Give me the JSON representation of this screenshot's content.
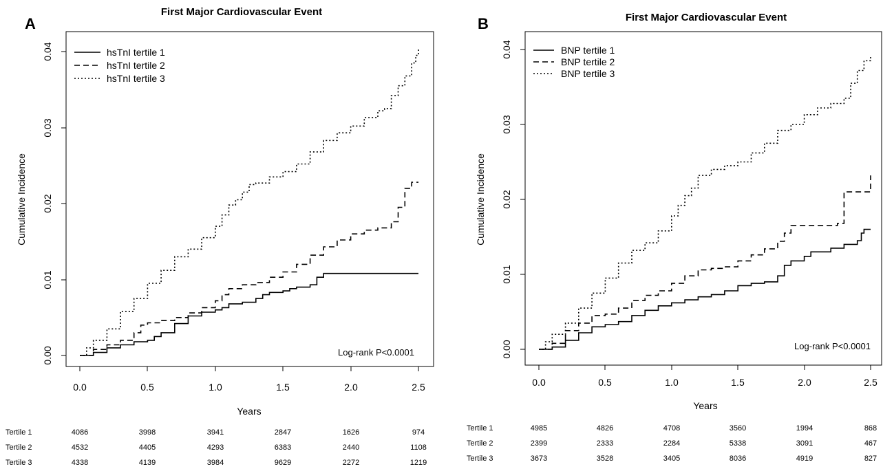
{
  "chart_data": [
    {
      "type": "line",
      "panel_letter": "A",
      "title": "First Major Cardiovascular Event",
      "xlabel": "Years",
      "ylabel": "Cumulative Incidence",
      "xlim": [
        0,
        2.5
      ],
      "ylim": [
        0,
        0.04
      ],
      "x_ticks": [
        "0.0",
        "0.5",
        "1.0",
        "1.5",
        "2.0",
        "2.5"
      ],
      "y_ticks": [
        "0.00",
        "0.01",
        "0.02",
        "0.03",
        "0.04"
      ],
      "legend_position": "top-left",
      "annotation": "Log-rank P<0.0001",
      "series": [
        {
          "name": "hsTnI tertile 1",
          "dash": "solid",
          "points": [
            [
              0,
              0
            ],
            [
              0.1,
              0.0004
            ],
            [
              0.2,
              0.001
            ],
            [
              0.3,
              0.0014
            ],
            [
              0.4,
              0.0018
            ],
            [
              0.5,
              0.002
            ],
            [
              0.55,
              0.0025
            ],
            [
              0.6,
              0.003
            ],
            [
              0.7,
              0.0042
            ],
            [
              0.8,
              0.0052
            ],
            [
              0.9,
              0.0057
            ],
            [
              1.0,
              0.006
            ],
            [
              1.05,
              0.0063
            ],
            [
              1.1,
              0.0068
            ],
            [
              1.2,
              0.007
            ],
            [
              1.3,
              0.0075
            ],
            [
              1.35,
              0.008
            ],
            [
              1.4,
              0.0083
            ],
            [
              1.5,
              0.0085
            ],
            [
              1.55,
              0.0088
            ],
            [
              1.6,
              0.009
            ],
            [
              1.7,
              0.0093
            ],
            [
              1.75,
              0.0103
            ],
            [
              1.8,
              0.0108
            ],
            [
              2.0,
              0.0108
            ],
            [
              2.5,
              0.0108
            ]
          ]
        },
        {
          "name": "hsTnI tertile 2",
          "dash": "dashed",
          "points": [
            [
              0,
              0
            ],
            [
              0.1,
              0.0008
            ],
            [
              0.2,
              0.0014
            ],
            [
              0.3,
              0.002
            ],
            [
              0.4,
              0.003
            ],
            [
              0.45,
              0.004
            ],
            [
              0.5,
              0.0043
            ],
            [
              0.6,
              0.0046
            ],
            [
              0.7,
              0.005
            ],
            [
              0.8,
              0.0056
            ],
            [
              0.9,
              0.0063
            ],
            [
              1.0,
              0.0072
            ],
            [
              1.05,
              0.008
            ],
            [
              1.1,
              0.0088
            ],
            [
              1.2,
              0.0093
            ],
            [
              1.3,
              0.0096
            ],
            [
              1.4,
              0.0103
            ],
            [
              1.5,
              0.011
            ],
            [
              1.6,
              0.012
            ],
            [
              1.7,
              0.0132
            ],
            [
              1.8,
              0.0143
            ],
            [
              1.9,
              0.0152
            ],
            [
              2.0,
              0.016
            ],
            [
              2.1,
              0.0165
            ],
            [
              2.2,
              0.0168
            ],
            [
              2.3,
              0.0176
            ],
            [
              2.35,
              0.0195
            ],
            [
              2.4,
              0.022
            ],
            [
              2.45,
              0.0228
            ],
            [
              2.5,
              0.0228
            ]
          ]
        },
        {
          "name": "hsTnI tertile 3",
          "dash": "dotted",
          "points": [
            [
              0,
              0
            ],
            [
              0.05,
              0.001
            ],
            [
              0.1,
              0.002
            ],
            [
              0.2,
              0.0035
            ],
            [
              0.3,
              0.0058
            ],
            [
              0.4,
              0.0075
            ],
            [
              0.5,
              0.0095
            ],
            [
              0.6,
              0.0112
            ],
            [
              0.7,
              0.013
            ],
            [
              0.8,
              0.014
            ],
            [
              0.9,
              0.0155
            ],
            [
              1.0,
              0.017
            ],
            [
              1.05,
              0.0185
            ],
            [
              1.1,
              0.0198
            ],
            [
              1.15,
              0.0205
            ],
            [
              1.2,
              0.0215
            ],
            [
              1.25,
              0.0225
            ],
            [
              1.3,
              0.0227
            ],
            [
              1.4,
              0.0235
            ],
            [
              1.5,
              0.0242
            ],
            [
              1.6,
              0.0252
            ],
            [
              1.7,
              0.0268
            ],
            [
              1.8,
              0.0283
            ],
            [
              1.9,
              0.0293
            ],
            [
              2.0,
              0.0302
            ],
            [
              2.1,
              0.0313
            ],
            [
              2.2,
              0.0322
            ],
            [
              2.25,
              0.0325
            ],
            [
              2.3,
              0.0342
            ],
            [
              2.35,
              0.0355
            ],
            [
              2.4,
              0.0368
            ],
            [
              2.45,
              0.0385
            ],
            [
              2.48,
              0.0395
            ],
            [
              2.5,
              0.0405
            ]
          ]
        }
      ],
      "risk_table": {
        "rows": [
          {
            "label": "Tertile 1",
            "values": [
              "4086",
              "3998",
              "3941",
              "2847",
              "1626",
              "974"
            ]
          },
          {
            "label": "Tertile 2",
            "values": [
              "4532",
              "4405",
              "4293",
              "6383",
              "2440",
              "1108"
            ]
          },
          {
            "label": "Tertile 3",
            "values": [
              "4338",
              "4139",
              "3984",
              "9629",
              "2272",
              "1219"
            ]
          }
        ]
      }
    },
    {
      "type": "line",
      "panel_letter": "B",
      "title": "First Major Cardiovascular Event",
      "xlabel": "Years",
      "ylabel": "Cumulative Incidence",
      "xlim": [
        0,
        2.5
      ],
      "ylim": [
        0,
        0.04
      ],
      "x_ticks": [
        "0.0",
        "0.5",
        "1.0",
        "1.5",
        "2.0",
        "2.5"
      ],
      "y_ticks": [
        "0.00",
        "0.01",
        "0.02",
        "0.03",
        "0.04"
      ],
      "legend_position": "top-left",
      "annotation": "Log-rank P<0.0001",
      "series": [
        {
          "name": "BNP tertile 1",
          "dash": "solid",
          "points": [
            [
              0,
              0
            ],
            [
              0.1,
              0.0003
            ],
            [
              0.2,
              0.0012
            ],
            [
              0.3,
              0.0022
            ],
            [
              0.4,
              0.003
            ],
            [
              0.5,
              0.0033
            ],
            [
              0.6,
              0.0037
            ],
            [
              0.7,
              0.0045
            ],
            [
              0.8,
              0.0052
            ],
            [
              0.9,
              0.0058
            ],
            [
              1.0,
              0.0062
            ],
            [
              1.1,
              0.0066
            ],
            [
              1.2,
              0.007
            ],
            [
              1.3,
              0.0073
            ],
            [
              1.4,
              0.0078
            ],
            [
              1.5,
              0.0085
            ],
            [
              1.6,
              0.0088
            ],
            [
              1.7,
              0.009
            ],
            [
              1.8,
              0.0098
            ],
            [
              1.85,
              0.0112
            ],
            [
              1.9,
              0.0118
            ],
            [
              2.0,
              0.0124
            ],
            [
              2.05,
              0.013
            ],
            [
              2.2,
              0.0135
            ],
            [
              2.3,
              0.014
            ],
            [
              2.4,
              0.0145
            ],
            [
              2.43,
              0.0155
            ],
            [
              2.45,
              0.016
            ],
            [
              2.5,
              0.016
            ]
          ]
        },
        {
          "name": "BNP tertile 2",
          "dash": "dashed",
          "points": [
            [
              0,
              0
            ],
            [
              0.1,
              0.0008
            ],
            [
              0.2,
              0.0025
            ],
            [
              0.3,
              0.0035
            ],
            [
              0.4,
              0.0045
            ],
            [
              0.5,
              0.0047
            ],
            [
              0.6,
              0.0055
            ],
            [
              0.7,
              0.0065
            ],
            [
              0.8,
              0.0072
            ],
            [
              0.9,
              0.0078
            ],
            [
              1.0,
              0.0088
            ],
            [
              1.1,
              0.0098
            ],
            [
              1.2,
              0.0106
            ],
            [
              1.3,
              0.0108
            ],
            [
              1.4,
              0.011
            ],
            [
              1.5,
              0.0118
            ],
            [
              1.6,
              0.0126
            ],
            [
              1.7,
              0.0134
            ],
            [
              1.8,
              0.0144
            ],
            [
              1.85,
              0.0155
            ],
            [
              1.9,
              0.0165
            ],
            [
              2.0,
              0.0165
            ],
            [
              2.25,
              0.0168
            ],
            [
              2.3,
              0.021
            ],
            [
              2.45,
              0.021
            ],
            [
              2.5,
              0.0232
            ]
          ]
        },
        {
          "name": "BNP tertile 3",
          "dash": "dotted",
          "points": [
            [
              0,
              0
            ],
            [
              0.05,
              0.001
            ],
            [
              0.1,
              0.002
            ],
            [
              0.2,
              0.0035
            ],
            [
              0.3,
              0.0055
            ],
            [
              0.4,
              0.0075
            ],
            [
              0.5,
              0.0095
            ],
            [
              0.6,
              0.0115
            ],
            [
              0.7,
              0.0132
            ],
            [
              0.8,
              0.0142
            ],
            [
              0.9,
              0.0158
            ],
            [
              1.0,
              0.0178
            ],
            [
              1.05,
              0.0192
            ],
            [
              1.1,
              0.0205
            ],
            [
              1.15,
              0.0215
            ],
            [
              1.2,
              0.0232
            ],
            [
              1.3,
              0.024
            ],
            [
              1.4,
              0.0245
            ],
            [
              1.5,
              0.025
            ],
            [
              1.6,
              0.0262
            ],
            [
              1.7,
              0.0275
            ],
            [
              1.8,
              0.0292
            ],
            [
              1.9,
              0.03
            ],
            [
              2.0,
              0.0313
            ],
            [
              2.1,
              0.0322
            ],
            [
              2.2,
              0.0328
            ],
            [
              2.3,
              0.0335
            ],
            [
              2.35,
              0.0355
            ],
            [
              2.4,
              0.0372
            ],
            [
              2.45,
              0.0385
            ],
            [
              2.5,
              0.0392
            ]
          ]
        }
      ],
      "risk_table": {
        "rows": [
          {
            "label": "Tertile 1",
            "values": [
              "4985",
              "4826",
              "4708",
              "3560",
              "1994",
              "868"
            ]
          },
          {
            "label": "Tertile 2",
            "values": [
              "2399",
              "2333",
              "2284",
              "5338",
              "3091",
              "467"
            ]
          },
          {
            "label": "Tertile 3",
            "values": [
              "3673",
              "3528",
              "3405",
              "8036",
              "4919",
              "827"
            ]
          }
        ]
      }
    }
  ]
}
